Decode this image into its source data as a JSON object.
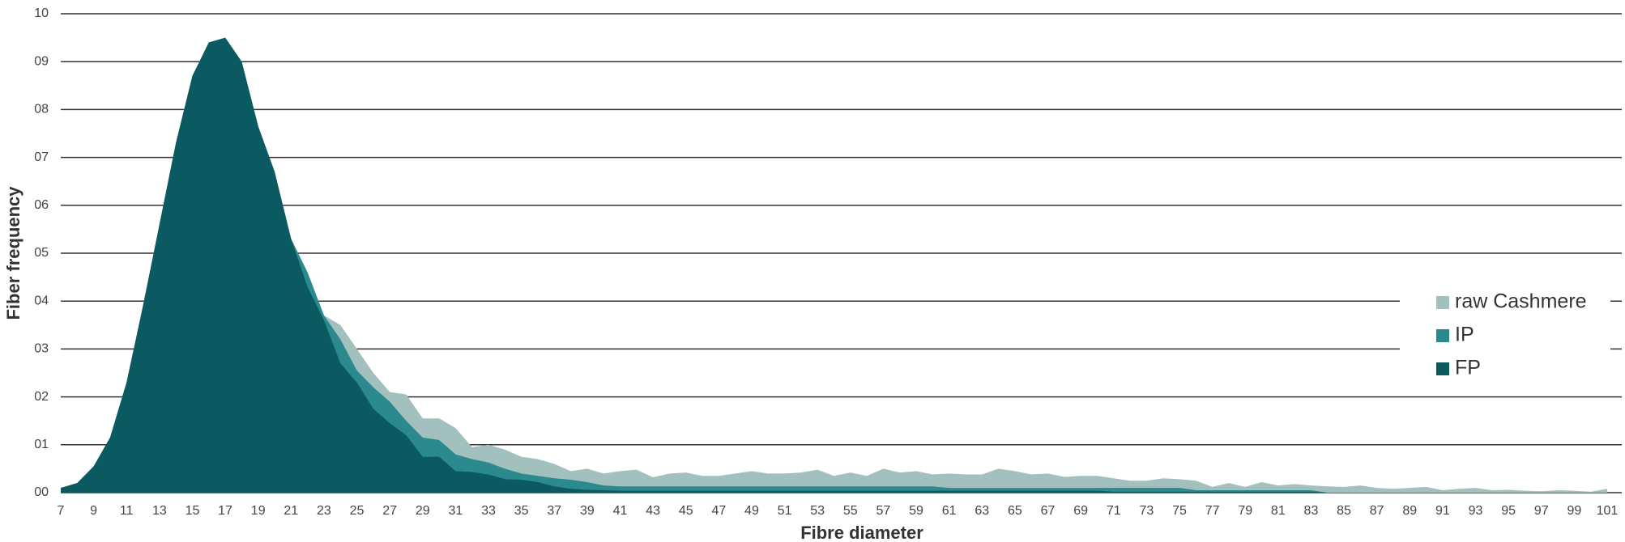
{
  "chart_data": {
    "type": "area",
    "x_label": "Fibre diameter",
    "y_label": "Fiber frequency",
    "x": [
      7,
      8,
      9,
      10,
      11,
      12,
      13,
      14,
      15,
      16,
      17,
      18,
      19,
      20,
      21,
      22,
      23,
      24,
      25,
      26,
      27,
      28,
      29,
      30,
      31,
      32,
      33,
      34,
      35,
      36,
      37,
      38,
      39,
      40,
      41,
      42,
      43,
      44,
      45,
      46,
      47,
      48,
      49,
      50,
      51,
      52,
      53,
      54,
      55,
      56,
      57,
      58,
      59,
      60,
      61,
      62,
      63,
      64,
      65,
      66,
      67,
      68,
      69,
      70,
      71,
      72,
      73,
      74,
      75,
      76,
      77,
      78,
      79,
      80,
      81,
      82,
      83,
      84,
      85,
      86,
      87,
      88,
      89,
      90,
      91,
      92,
      93,
      94,
      95,
      96,
      97,
      98,
      99,
      100,
      101
    ],
    "series": [
      {
        "name": "raw Cashmere",
        "color": "#a2c0be",
        "values": [
          0.1,
          0.2,
          0.55,
          1.15,
          2.3,
          3.9,
          5.6,
          7.3,
          8.7,
          9.4,
          9.5,
          9.0,
          7.65,
          6.7,
          5.3,
          4.6,
          3.7,
          3.5,
          3.0,
          2.5,
          2.1,
          2.05,
          1.55,
          1.55,
          1.35,
          0.95,
          1.0,
          0.9,
          0.75,
          0.7,
          0.6,
          0.45,
          0.5,
          0.4,
          0.45,
          0.48,
          0.32,
          0.4,
          0.42,
          0.35,
          0.35,
          0.4,
          0.45,
          0.4,
          0.4,
          0.42,
          0.48,
          0.35,
          0.42,
          0.35,
          0.5,
          0.42,
          0.45,
          0.38,
          0.4,
          0.38,
          0.38,
          0.5,
          0.45,
          0.38,
          0.4,
          0.33,
          0.35,
          0.35,
          0.3,
          0.25,
          0.25,
          0.3,
          0.28,
          0.25,
          0.12,
          0.2,
          0.12,
          0.22,
          0.15,
          0.18,
          0.15,
          0.13,
          0.12,
          0.15,
          0.1,
          0.08,
          0.1,
          0.12,
          0.05,
          0.08,
          0.1,
          0.05,
          0.06,
          0.04,
          0.03,
          0.05,
          0.04,
          0.02,
          0.08
        ]
      },
      {
        "name": "IP",
        "color": "#2a8a8e",
        "values": [
          0.1,
          0.2,
          0.55,
          1.15,
          2.3,
          3.9,
          5.6,
          7.3,
          8.7,
          9.4,
          9.5,
          9.0,
          7.65,
          6.7,
          5.3,
          4.6,
          3.7,
          3.2,
          2.55,
          2.2,
          1.9,
          1.5,
          1.15,
          1.1,
          0.8,
          0.7,
          0.63,
          0.5,
          0.4,
          0.35,
          0.3,
          0.27,
          0.22,
          0.15,
          0.13,
          0.13,
          0.13,
          0.13,
          0.13,
          0.13,
          0.13,
          0.13,
          0.13,
          0.13,
          0.13,
          0.13,
          0.13,
          0.13,
          0.13,
          0.13,
          0.13,
          0.13,
          0.13,
          0.13,
          0.1,
          0.1,
          0.1,
          0.1,
          0.1,
          0.1,
          0.1,
          0.1,
          0.1,
          0.1,
          0.1,
          0.1,
          0.1,
          0.1,
          0.1,
          0.05,
          0.05,
          0.05,
          0.05,
          0.05,
          0.05,
          0.05,
          0.05,
          0,
          0,
          0,
          0,
          0,
          0,
          0,
          0,
          0,
          0,
          0,
          0,
          0,
          0,
          0,
          0,
          0,
          0
        ]
      },
      {
        "name": "FP",
        "color": "#0b5a62",
        "values": [
          0.1,
          0.2,
          0.55,
          1.15,
          2.3,
          3.9,
          5.6,
          7.3,
          8.7,
          9.4,
          9.5,
          9.0,
          7.65,
          6.7,
          5.3,
          4.3,
          3.6,
          2.7,
          2.3,
          1.75,
          1.45,
          1.2,
          0.75,
          0.75,
          0.45,
          0.43,
          0.38,
          0.28,
          0.27,
          0.22,
          0.13,
          0.08,
          0.06,
          0.05,
          0.04,
          0.04,
          0.04,
          0.04,
          0.04,
          0.04,
          0.04,
          0.04,
          0.04,
          0.04,
          0.04,
          0.04,
          0.04,
          0.04,
          0.04,
          0.04,
          0.04,
          0.04,
          0.04,
          0.04,
          0.04,
          0.04,
          0.04,
          0.04,
          0.04,
          0.04,
          0.04,
          0.04,
          0.04,
          0.04,
          0.02,
          0.02,
          0.02,
          0.02,
          0.02,
          0.02,
          0.02,
          0.02,
          0.02,
          0.02,
          0.02,
          0.02,
          0.02,
          0,
          0,
          0,
          0,
          0,
          0,
          0,
          0,
          0,
          0,
          0,
          0,
          0,
          0,
          0,
          0,
          0,
          0
        ]
      }
    ],
    "xlim": [
      7,
      101
    ],
    "xticks": [
      7,
      9,
      11,
      13,
      15,
      17,
      19,
      21,
      23,
      25,
      27,
      29,
      31,
      33,
      35,
      37,
      39,
      41,
      43,
      45,
      47,
      49,
      51,
      53,
      55,
      57,
      59,
      61,
      63,
      65,
      67,
      69,
      71,
      73,
      75,
      77,
      79,
      81,
      83,
      85,
      87,
      89,
      91,
      93,
      95,
      97,
      99,
      101
    ],
    "ylim": [
      0,
      10
    ],
    "yticks": [
      {
        "value": 0,
        "label": "00"
      },
      {
        "value": 1,
        "label": "01"
      },
      {
        "value": 2,
        "label": "02"
      },
      {
        "value": 3,
        "label": "03"
      },
      {
        "value": 4,
        "label": "04"
      },
      {
        "value": 5,
        "label": "05"
      },
      {
        "value": 6,
        "label": "06"
      },
      {
        "value": 7,
        "label": "07"
      },
      {
        "value": 8,
        "label": "08"
      },
      {
        "value": 9,
        "label": "09"
      },
      {
        "value": 10,
        "label": "10"
      }
    ],
    "grid": true
  }
}
